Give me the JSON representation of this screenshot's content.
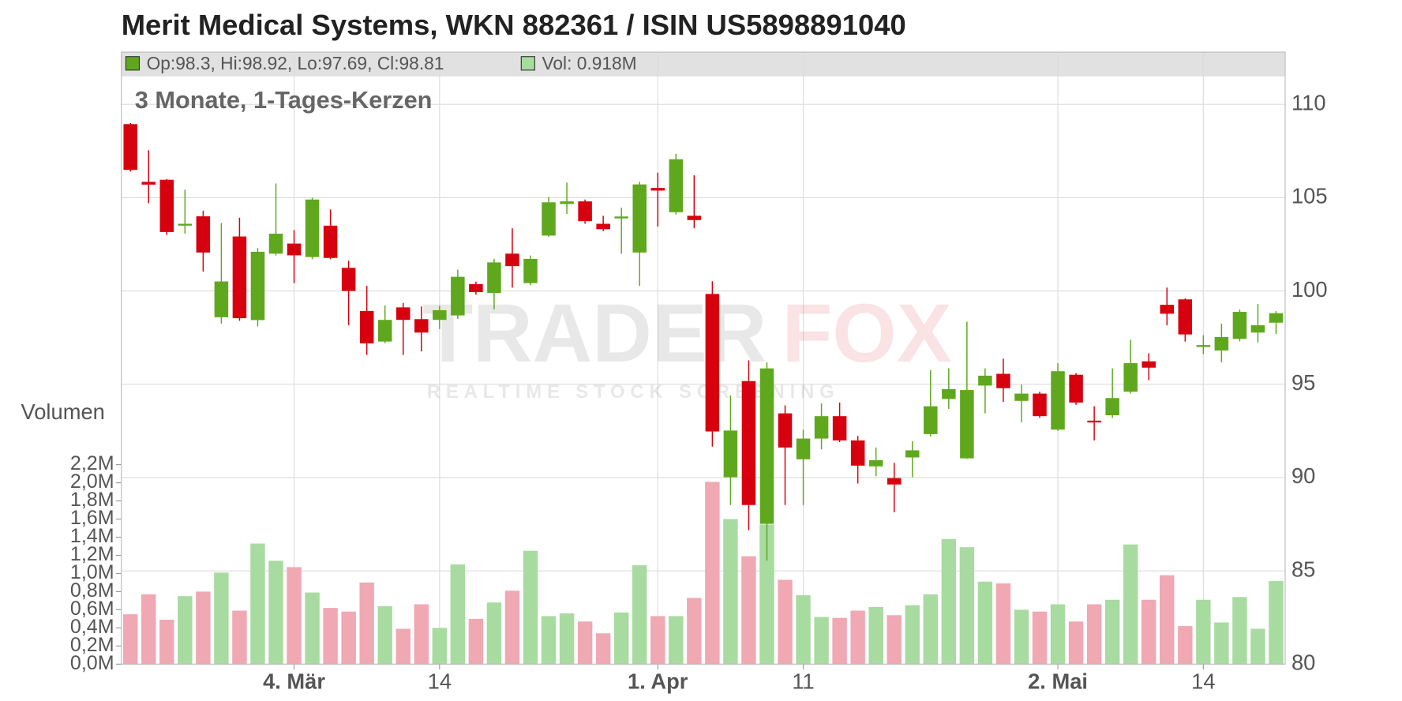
{
  "chart_data": {
    "type": "candlestick",
    "title": "Merit Medical Systems, WKN 882361 / ISIN US5898891040",
    "subtitle": "3 Monate, 1-Tages-Kerzen",
    "legend": {
      "ohlc": "Op:98.3, Hi:98.92, Lo:97.69, Cl:98.81",
      "volume": "Vol: 0.918M"
    },
    "watermark": {
      "brand_left": "TRADER",
      "brand_right": "FOX",
      "tagline": "REALTIME STOCK SCREENING"
    },
    "categories": [
      null,
      null,
      null,
      null,
      null,
      null,
      null,
      null,
      null,
      "4. Mär",
      null,
      null,
      null,
      null,
      null,
      null,
      null,
      "14",
      null,
      null,
      null,
      null,
      null,
      null,
      null,
      null,
      null,
      null,
      null,
      "1. Apr",
      null,
      null,
      null,
      null,
      null,
      null,
      null,
      "11",
      null,
      null,
      null,
      null,
      null,
      null,
      null,
      null,
      null,
      null,
      null,
      null,
      null,
      "2. Mai",
      null,
      null,
      null,
      null,
      null,
      null,
      null,
      "14",
      null,
      null,
      null,
      null
    ],
    "open": [
      108.94,
      105.85,
      105.96,
      103.5,
      104.0,
      98.59,
      102.92,
      98.44,
      102.0,
      102.54,
      101.82,
      103.5,
      101.24,
      98.93,
      97.29,
      99.12,
      98.49,
      98.45,
      98.69,
      100.37,
      99.89,
      102.0,
      100.42,
      102.97,
      104.66,
      104.8,
      103.6,
      103.89,
      102.06,
      105.52,
      104.22,
      104.03,
      99.84,
      90.02,
      95.17,
      87.52,
      93.44,
      90.98,
      92.09,
      93.29,
      91.99,
      90.6,
      89.97,
      91.08,
      92.33,
      94.21,
      91.03,
      94.93,
      95.56,
      94.11,
      94.5,
      92.57,
      95.51,
      93.05,
      93.34,
      94.6,
      96.23,
      99.26,
      99.55,
      97.0,
      96.81,
      97.43,
      97.77,
      98.3
    ],
    "high": [
      109.0,
      107.54,
      106.0,
      105.43,
      104.3,
      103.64,
      103.93,
      102.3,
      105.76,
      103.26,
      105.0,
      104.37,
      101.62,
      100.27,
      99.22,
      99.36,
      99.17,
      99.2,
      101.14,
      100.5,
      101.72,
      103.36,
      101.9,
      105.04,
      105.81,
      104.9,
      104.03,
      104.46,
      105.86,
      106.34,
      107.35,
      106.2,
      100.52,
      94.4,
      96.28,
      96.18,
      93.87,
      92.57,
      93.97,
      94.02,
      92.23,
      91.61,
      90.79,
      91.95,
      95.75,
      95.85,
      98.35,
      95.85,
      96.37,
      94.98,
      94.6,
      96.13,
      95.6,
      93.82,
      95.85,
      97.39,
      96.66,
      100.18,
      99.6,
      97.63,
      98.25,
      99.0,
      99.31,
      98.92
    ],
    "low": [
      106.4,
      104.7,
      103.0,
      103.07,
      101.04,
      98.25,
      98.4,
      98.1,
      101.9,
      100.42,
      101.7,
      101.7,
      98.16,
      96.57,
      97.2,
      96.57,
      96.76,
      97.96,
      98.5,
      99.8,
      99.02,
      100.18,
      100.3,
      102.9,
      104.13,
      103.6,
      103.2,
      102.0,
      100.27,
      103.45,
      104.1,
      103.36,
      91.66,
      88.53,
      87.18,
      85.54,
      88.53,
      88.53,
      91.51,
      91.9,
      89.68,
      90.07,
      88.14,
      90.02,
      92.2,
      93.68,
      91.0,
      93.44,
      94.06,
      92.96,
      93.2,
      92.5,
      93.9,
      91.99,
      93.2,
      94.5,
      95.22,
      98.16,
      97.29,
      96.62,
      96.18,
      97.3,
      97.24,
      97.69
    ],
    "close": [
      106.49,
      105.7,
      103.16,
      103.6,
      102.06,
      100.51,
      98.54,
      102.1,
      103.07,
      101.91,
      104.9,
      101.77,
      100.0,
      97.19,
      98.45,
      98.45,
      97.77,
      98.97,
      100.76,
      99.94,
      101.53,
      101.33,
      101.72,
      104.75,
      104.8,
      103.74,
      103.31,
      103.99,
      105.71,
      105.38,
      107.06,
      103.8,
      92.47,
      92.52,
      88.53,
      95.85,
      91.61,
      92.09,
      93.29,
      91.99,
      90.64,
      90.93,
      89.63,
      91.46,
      93.82,
      94.74,
      94.69,
      95.46,
      94.79,
      94.5,
      93.29,
      95.7,
      94.02,
      92.96,
      94.26,
      96.13,
      95.89,
      98.78,
      97.67,
      97.1,
      97.53,
      98.88,
      98.16,
      98.81
    ],
    "volume": [
      0.55,
      0.77,
      0.49,
      0.75,
      0.8,
      1.01,
      0.59,
      1.33,
      1.14,
      1.07,
      0.79,
      0.62,
      0.58,
      0.9,
      0.64,
      0.39,
      0.66,
      0.4,
      1.1,
      0.5,
      0.68,
      0.81,
      1.25,
      0.53,
      0.56,
      0.47,
      0.34,
      0.57,
      1.09,
      0.53,
      0.53,
      0.73,
      2.01,
      1.6,
      1.19,
      1.54,
      0.93,
      0.76,
      0.52,
      0.51,
      0.59,
      0.63,
      0.54,
      0.65,
      0.77,
      1.38,
      1.29,
      0.91,
      0.89,
      0.6,
      0.58,
      0.66,
      0.47,
      0.66,
      0.71,
      1.32,
      0.71,
      0.98,
      0.42,
      0.71,
      0.46,
      0.74,
      0.39,
      0.918
    ],
    "up_color": "#5fa81e",
    "down_color": "#d7000f",
    "volume_up_color": "#a8dba0",
    "volume_down_color": "#f0a8b3",
    "ylim": [
      80,
      112.8
    ],
    "yticks": [
      80,
      85,
      90,
      95,
      100,
      105,
      110
    ],
    "volume_axis_label": "Volumen",
    "volume_ylim": [
      0,
      2.2
    ],
    "volume_yticks": [
      {
        "value": 0,
        "label": "0,0M"
      },
      {
        "value": 0.2,
        "label": "0,2M"
      },
      {
        "value": 0.4,
        "label": "0,4M"
      },
      {
        "value": 0.6,
        "label": "0,6M"
      },
      {
        "value": 0.8,
        "label": "0,8M"
      },
      {
        "value": 1.0,
        "label": "1,0M"
      },
      {
        "value": 1.2,
        "label": "1,2M"
      },
      {
        "value": 1.4,
        "label": "1,4M"
      },
      {
        "value": 1.6,
        "label": "1,6M"
      },
      {
        "value": 1.8,
        "label": "1,8M"
      },
      {
        "value": 2.0,
        "label": "2,0M"
      },
      {
        "value": 2.2,
        "label": "2,2M"
      }
    ],
    "grid": true
  }
}
